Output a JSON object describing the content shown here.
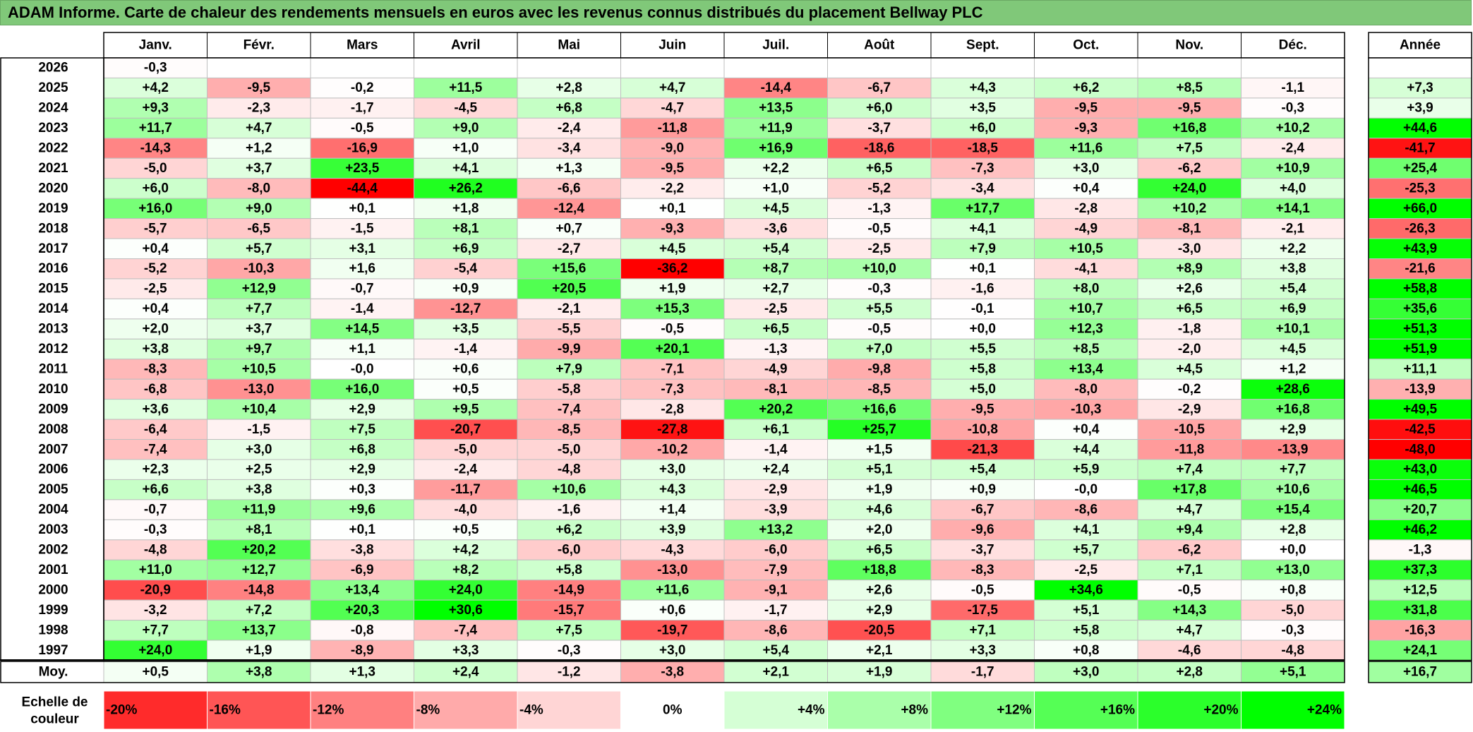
{
  "title": "ADAM Informe. Carte de chaleur des rendements mensuels en euros avec les revenus connus distribués du placement Bellway PLC",
  "chart_data": {
    "type": "heatmap",
    "months": [
      "Janv.",
      "Févr.",
      "Mars",
      "Avril",
      "Mai",
      "Juin",
      "Juil.",
      "Août",
      "Sept.",
      "Oct.",
      "Nov.",
      "Déc."
    ],
    "annual_label": "Année",
    "rows": [
      {
        "year": "2026",
        "values": [
          "-0,3",
          null,
          null,
          null,
          null,
          null,
          null,
          null,
          null,
          null,
          null,
          null
        ],
        "annual": null
      },
      {
        "year": "2025",
        "values": [
          "+4,2",
          "-9,5",
          "-0,2",
          "+11,5",
          "+2,8",
          "+4,7",
          "-14,4",
          "-6,7",
          "+4,3",
          "+6,2",
          "+8,5",
          "-1,1"
        ],
        "annual": "+7,3"
      },
      {
        "year": "2024",
        "values": [
          "+9,3",
          "-2,3",
          "-1,7",
          "-4,5",
          "+6,8",
          "-4,7",
          "+13,5",
          "+6,0",
          "+3,5",
          "-9,5",
          "-9,5",
          "-0,3"
        ],
        "annual": "+3,9"
      },
      {
        "year": "2023",
        "values": [
          "+11,7",
          "+4,7",
          "-0,5",
          "+9,0",
          "-2,4",
          "-11,8",
          "+11,9",
          "-3,7",
          "+6,0",
          "-9,3",
          "+16,8",
          "+10,2"
        ],
        "annual": "+44,6"
      },
      {
        "year": "2022",
        "values": [
          "-14,3",
          "+1,2",
          "-16,9",
          "+1,0",
          "-3,4",
          "-9,0",
          "+16,9",
          "-18,6",
          "-18,5",
          "+11,6",
          "+7,5",
          "-2,4"
        ],
        "annual": "-41,7"
      },
      {
        "year": "2021",
        "values": [
          "-5,0",
          "+3,7",
          "+23,5",
          "+4,1",
          "+1,3",
          "-9,5",
          "+2,2",
          "+6,5",
          "-7,3",
          "+3,0",
          "-6,2",
          "+10,9"
        ],
        "annual": "+25,4"
      },
      {
        "year": "2020",
        "values": [
          "+6,0",
          "-8,0",
          "-44,4",
          "+26,2",
          "-6,6",
          "-2,2",
          "+1,0",
          "-5,2",
          "-3,4",
          "+0,4",
          "+24,0",
          "+4,0"
        ],
        "annual": "-25,3"
      },
      {
        "year": "2019",
        "values": [
          "+16,0",
          "+9,0",
          "+0,1",
          "+1,8",
          "-12,4",
          "+0,1",
          "+4,5",
          "-1,3",
          "+17,7",
          "-2,8",
          "+10,2",
          "+14,1"
        ],
        "annual": "+66,0"
      },
      {
        "year": "2018",
        "values": [
          "-5,7",
          "-6,5",
          "-1,5",
          "+8,1",
          "+0,7",
          "-9,3",
          "-3,6",
          "-0,5",
          "+4,1",
          "-4,9",
          "-8,1",
          "-2,1"
        ],
        "annual": "-26,3"
      },
      {
        "year": "2017",
        "values": [
          "+0,4",
          "+5,7",
          "+3,1",
          "+6,9",
          "-2,7",
          "+4,5",
          "+5,4",
          "-2,5",
          "+7,9",
          "+10,5",
          "-3,0",
          "+2,2"
        ],
        "annual": "+43,9"
      },
      {
        "year": "2016",
        "values": [
          "-5,2",
          "-10,3",
          "+1,6",
          "-5,4",
          "+15,6",
          "-36,2",
          "+8,7",
          "+10,0",
          "+0,1",
          "-4,1",
          "+8,9",
          "+3,8"
        ],
        "annual": "-21,6"
      },
      {
        "year": "2015",
        "values": [
          "-2,5",
          "+12,9",
          "-0,7",
          "+0,9",
          "+20,5",
          "+1,9",
          "+2,7",
          "-0,3",
          "-1,6",
          "+8,0",
          "+2,6",
          "+5,4"
        ],
        "annual": "+58,8"
      },
      {
        "year": "2014",
        "values": [
          "+0,4",
          "+7,7",
          "-1,4",
          "-12,7",
          "-2,1",
          "+15,3",
          "-2,5",
          "+5,5",
          "-0,1",
          "+10,7",
          "+6,5",
          "+6,9"
        ],
        "annual": "+35,6"
      },
      {
        "year": "2013",
        "values": [
          "+2,0",
          "+3,7",
          "+14,5",
          "+3,5",
          "-5,5",
          "-0,5",
          "+6,5",
          "-0,5",
          "+0,0",
          "+12,3",
          "-1,8",
          "+10,1"
        ],
        "annual": "+51,3"
      },
      {
        "year": "2012",
        "values": [
          "+3,8",
          "+9,7",
          "+1,1",
          "-1,4",
          "-9,9",
          "+20,1",
          "-1,3",
          "+7,0",
          "+5,5",
          "+8,5",
          "-2,0",
          "+4,5"
        ],
        "annual": "+51,9"
      },
      {
        "year": "2011",
        "values": [
          "-8,3",
          "+10,5",
          "-0,0",
          "+0,6",
          "+7,9",
          "-7,1",
          "-4,9",
          "-9,8",
          "+5,8",
          "+13,4",
          "+4,5",
          "+1,2"
        ],
        "annual": "+11,1"
      },
      {
        "year": "2010",
        "values": [
          "-6,8",
          "-13,0",
          "+16,0",
          "+0,5",
          "-5,8",
          "-7,3",
          "-8,1",
          "-8,5",
          "+5,0",
          "-8,0",
          "-0,2",
          "+28,6"
        ],
        "annual": "-13,9"
      },
      {
        "year": "2009",
        "values": [
          "+3,6",
          "+10,4",
          "+2,9",
          "+9,5",
          "-7,4",
          "-2,8",
          "+20,2",
          "+16,6",
          "-9,5",
          "-10,3",
          "-2,9",
          "+16,8"
        ],
        "annual": "+49,5"
      },
      {
        "year": "2008",
        "values": [
          "-6,4",
          "-1,5",
          "+7,5",
          "-20,7",
          "-8,5",
          "-27,8",
          "+6,1",
          "+25,7",
          "-10,8",
          "+0,4",
          "-10,5",
          "+2,9"
        ],
        "annual": "-42,5"
      },
      {
        "year": "2007",
        "values": [
          "-7,4",
          "+3,0",
          "+6,8",
          "-5,0",
          "-5,0",
          "-10,2",
          "-1,4",
          "+1,5",
          "-21,3",
          "+4,4",
          "-11,8",
          "-13,9"
        ],
        "annual": "-48,0"
      },
      {
        "year": "2006",
        "values": [
          "+2,3",
          "+2,5",
          "+2,9",
          "-2,4",
          "-4,8",
          "+3,0",
          "+2,4",
          "+5,1",
          "+5,4",
          "+5,9",
          "+7,4",
          "+7,7"
        ],
        "annual": "+43,0"
      },
      {
        "year": "2005",
        "values": [
          "+6,6",
          "+3,8",
          "+0,3",
          "-11,7",
          "+10,6",
          "+4,3",
          "-2,9",
          "+1,9",
          "+0,9",
          "-0,0",
          "+17,8",
          "+10,6"
        ],
        "annual": "+46,5"
      },
      {
        "year": "2004",
        "values": [
          "-0,7",
          "+11,9",
          "+9,6",
          "-4,0",
          "-1,6",
          "+1,4",
          "-3,9",
          "+4,6",
          "-6,7",
          "-8,6",
          "+4,7",
          "+15,4"
        ],
        "annual": "+20,7"
      },
      {
        "year": "2003",
        "values": [
          "-0,3",
          "+8,1",
          "+0,1",
          "+0,5",
          "+6,2",
          "+3,9",
          "+13,2",
          "+2,0",
          "-9,6",
          "+4,1",
          "+9,4",
          "+2,8"
        ],
        "annual": "+46,2"
      },
      {
        "year": "2002",
        "values": [
          "-4,8",
          "+20,2",
          "-3,8",
          "+4,2",
          "-6,0",
          "-4,3",
          "-6,0",
          "+6,5",
          "-3,7",
          "+5,7",
          "-6,2",
          "+0,0"
        ],
        "annual": "-1,3"
      },
      {
        "year": "2001",
        "values": [
          "+11,0",
          "+12,7",
          "-6,9",
          "+8,2",
          "+5,8",
          "-13,0",
          "-7,9",
          "+18,8",
          "-8,3",
          "-2,5",
          "+7,1",
          "+13,0"
        ],
        "annual": "+37,3"
      },
      {
        "year": "2000",
        "values": [
          "-20,9",
          "-14,8",
          "+13,4",
          "+24,0",
          "-14,9",
          "+11,6",
          "-9,1",
          "+2,6",
          "-0,5",
          "+34,6",
          "-0,5",
          "+0,8"
        ],
        "annual": "+12,5"
      },
      {
        "year": "1999",
        "values": [
          "-3,2",
          "+7,2",
          "+20,3",
          "+30,6",
          "-15,7",
          "+0,6",
          "-1,7",
          "+2,9",
          "-17,5",
          "+5,1",
          "+14,3",
          "-5,0"
        ],
        "annual": "+31,8"
      },
      {
        "year": "1998",
        "values": [
          "+7,7",
          "+13,7",
          "-0,8",
          "-7,4",
          "+7,5",
          "-19,7",
          "-8,6",
          "-20,5",
          "+7,1",
          "+5,8",
          "+4,7",
          "-0,3"
        ],
        "annual": "-16,3"
      },
      {
        "year": "1997",
        "values": [
          "+24,0",
          "+1,9",
          "-8,9",
          "+3,3",
          "-0,3",
          "+3,0",
          "+5,4",
          "+2,1",
          "+3,3",
          "+0,8",
          "-4,6",
          "-4,8"
        ],
        "annual": "+24,1"
      }
    ],
    "average": {
      "label": "Moy.",
      "values": [
        "+0,5",
        "+3,8",
        "+1,3",
        "+2,4",
        "-1,2",
        "-3,8",
        "+2,1",
        "+1,9",
        "-1,7",
        "+3,0",
        "+2,8",
        "+5,1"
      ],
      "annual": "+16,7"
    },
    "scale": {
      "label_line1": "Echelle de",
      "label_line2": "couleur",
      "stops": [
        {
          "label": "-20%",
          "value": -20,
          "align": "left"
        },
        {
          "label": "-16%",
          "value": -16,
          "align": "left"
        },
        {
          "label": "-12%",
          "value": -12,
          "align": "left"
        },
        {
          "label": "-8%",
          "value": -8,
          "align": "left"
        },
        {
          "label": "-4%",
          "value": -4,
          "align": "left"
        },
        {
          "label": "0%",
          "value": 0,
          "align": "center"
        },
        {
          "label": "+4%",
          "value": 4,
          "align": "right"
        },
        {
          "label": "+8%",
          "value": 8,
          "align": "right"
        },
        {
          "label": "+12%",
          "value": 12,
          "align": "right"
        },
        {
          "label": "+16%",
          "value": 16,
          "align": "right"
        },
        {
          "label": "+20%",
          "value": 20,
          "align": "right"
        },
        {
          "label": "+24%",
          "value": 24,
          "align": "right"
        }
      ]
    },
    "colors": {
      "negative_max": "#ff0000",
      "neutral": "#ffffff",
      "positive_max": "#00ff00"
    }
  }
}
